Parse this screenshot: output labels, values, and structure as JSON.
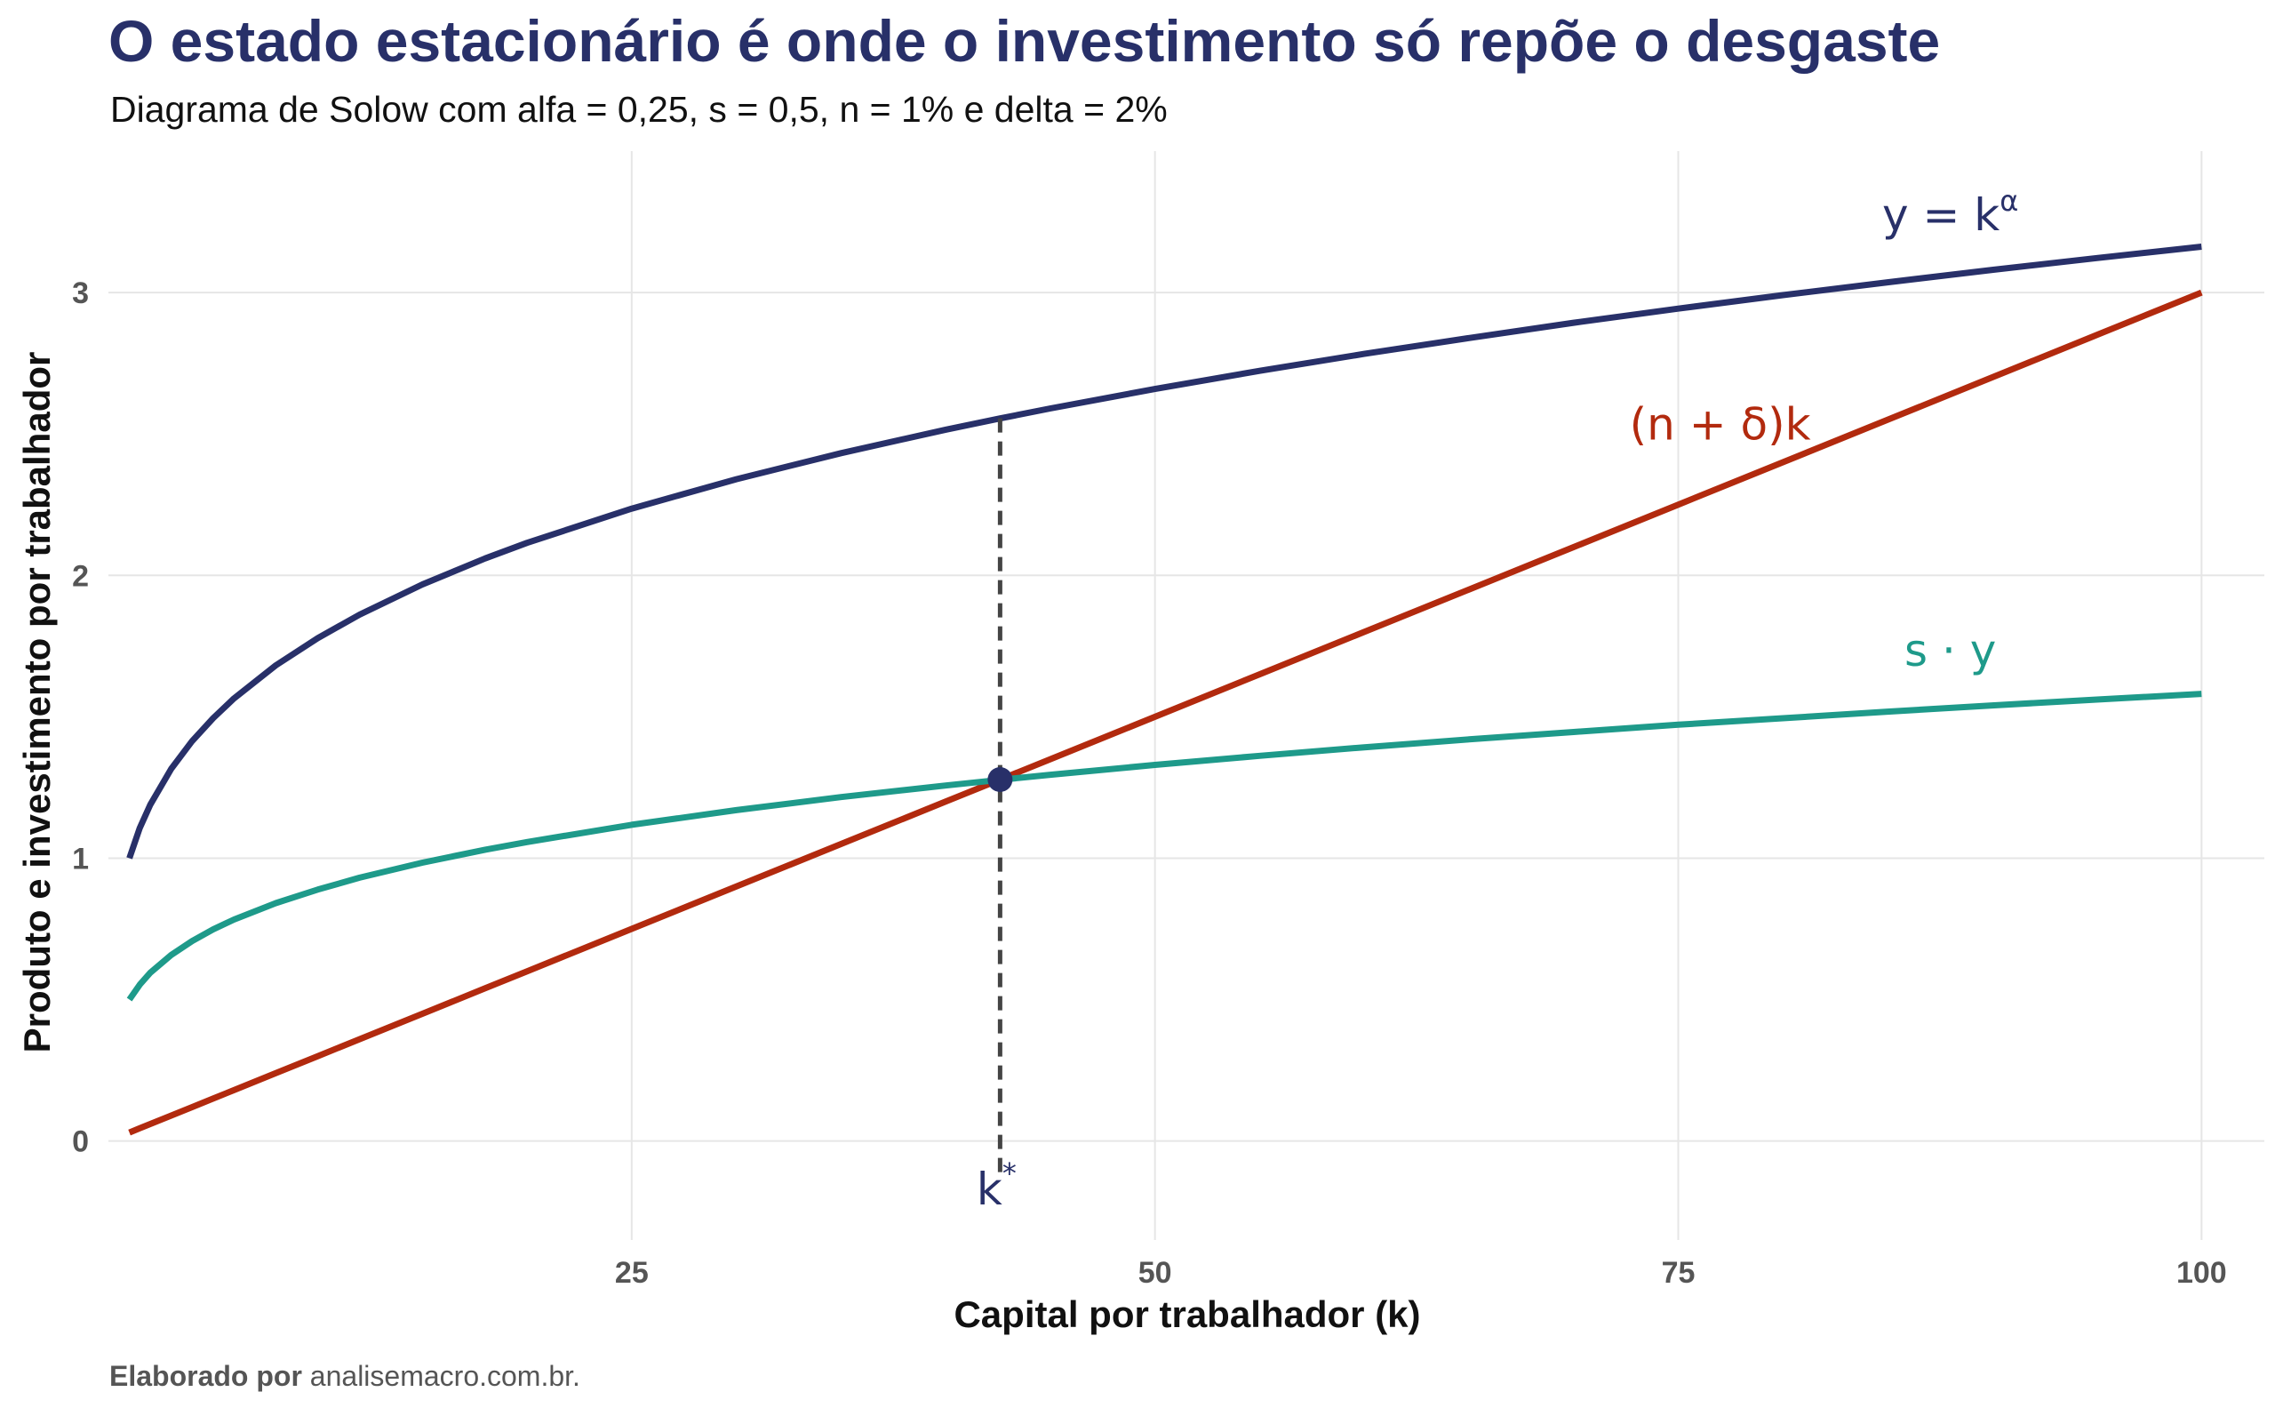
{
  "title": "O estado estacionário é onde o investimento só repõe o desgaste",
  "subtitle": "Diagrama de Solow com alfa = 0,25, s = 0,5, n = 1% e delta = 2%",
  "caption": {
    "prefix": "Elaborado por",
    "source": "analisemacro.com.br."
  },
  "colors": {
    "production": "#283069",
    "depreciation": "#B22A0E",
    "savings": "#1E9A8A",
    "dashed": "#444444",
    "grid": "#E6E6E6",
    "tick": "#555555"
  },
  "chart_data": {
    "type": "line",
    "xlabel": "Capital por trabalhador (k)",
    "ylabel": "Produto e investimento por trabalhador",
    "xlim": [
      0,
      103
    ],
    "ylim": [
      -0.35,
      3.5
    ],
    "x_ticks": [
      25,
      50,
      75,
      100
    ],
    "y_ticks": [
      0,
      1,
      2,
      3
    ],
    "grid": true,
    "params": {
      "alpha": 0.25,
      "s": 0.5,
      "n": 0.01,
      "delta": 0.02
    },
    "x": [
      1,
      1.5,
      2,
      3,
      4,
      5,
      6,
      8,
      10,
      12,
      15,
      18,
      20,
      25,
      30,
      35,
      40,
      42.6,
      45,
      50,
      55,
      60,
      65,
      70,
      75,
      80,
      85,
      90,
      95,
      100
    ],
    "series": [
      {
        "label": "y = k",
        "label_sup": "α",
        "color": "#283069",
        "values": [
          1.0,
          1.107,
          1.189,
          1.316,
          1.414,
          1.495,
          1.565,
          1.682,
          1.778,
          1.861,
          1.968,
          2.06,
          2.115,
          2.236,
          2.34,
          2.432,
          2.515,
          2.555,
          2.59,
          2.659,
          2.723,
          2.783,
          2.839,
          2.893,
          2.943,
          2.991,
          3.036,
          3.08,
          3.122,
          3.162
        ],
        "label_pos": [
          88,
          3.22
        ]
      },
      {
        "label": "(n + δ)k",
        "color": "#B22A0E",
        "values": [
          0.03,
          0.045,
          0.06,
          0.09,
          0.12,
          0.15,
          0.18,
          0.24,
          0.3,
          0.36,
          0.45,
          0.54,
          0.6,
          0.75,
          0.9,
          1.05,
          1.2,
          1.278,
          1.35,
          1.5,
          1.65,
          1.8,
          1.95,
          2.1,
          2.25,
          2.4,
          2.55,
          2.7,
          2.85,
          3.0
        ],
        "label_pos": [
          77,
          2.48
        ]
      },
      {
        "label": "s · y",
        "color": "#1E9A8A",
        "values": [
          0.5,
          0.553,
          0.595,
          0.658,
          0.707,
          0.748,
          0.783,
          0.841,
          0.889,
          0.931,
          0.984,
          1.03,
          1.057,
          1.118,
          1.17,
          1.216,
          1.257,
          1.277,
          1.295,
          1.33,
          1.362,
          1.392,
          1.42,
          1.446,
          1.472,
          1.495,
          1.518,
          1.54,
          1.561,
          1.581
        ],
        "label_pos": [
          88,
          1.68
        ]
      }
    ],
    "steady_state": {
      "k": 42.6,
      "value": 1.278,
      "label": "k",
      "label_sup": "*"
    }
  }
}
